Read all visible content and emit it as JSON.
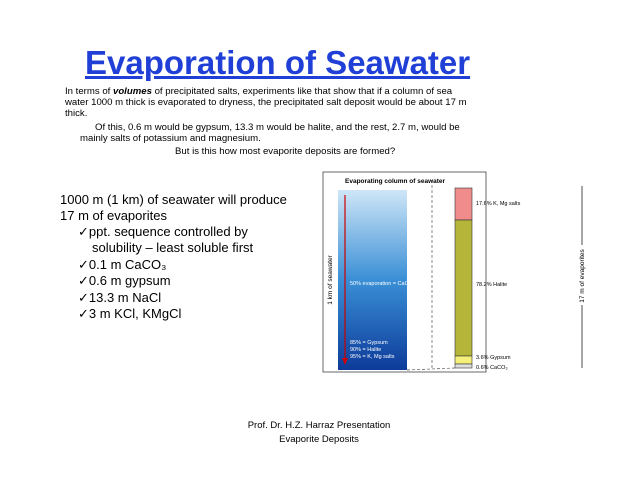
{
  "title": "Evaporation of Seawater",
  "intro": {
    "line1": [
      "In terms of ",
      "volumes",
      " of precipitated salts, experiments like that show that if a column of sea"
    ],
    "line2": "water 1000 m thick is evaporated to dryness, the precipitated salt deposit would be about 17 m",
    "line3": "thick.",
    "line4": "Of this, 0.6 m would be gypsum, 13.3 m would be halite, and the rest, 2.7 m, would be",
    "line5": "mainly salts of potassium and magnesium.",
    "line6": "But is this how most evaporite deposits are formed?"
  },
  "summary": [
    "1000 m (1 km) of seawater will produce",
    "17 m of evaporites"
  ],
  "bullets": [
    "✓ppt. sequence controlled by",
    "solubility – least soluble first",
    "✓0.1 m CaCO₃",
    "✓0.6 m gypsum",
    "✓13.3 m NaCl",
    "✓3 m KCl, KMgCl"
  ],
  "figure": {
    "title": "Evaporating column of seawater",
    "left_axis": "1 km of seawater",
    "right_axis": "17 m of evaporites",
    "seawater_labels": [
      "50% evaporation = CaCO₃",
      "85% = Gypsum",
      "90% = Halite",
      "95% = K, Mg salts"
    ],
    "evaporite_labels": [
      "17.6% K, Mg salts",
      "78.2% Halite",
      "3.6% Gypsum",
      "0.6% CaCO₃"
    ]
  },
  "footer": [
    "Prof. Dr. H.Z. Harraz Presentation",
    "Evaporite Deposits"
  ]
}
